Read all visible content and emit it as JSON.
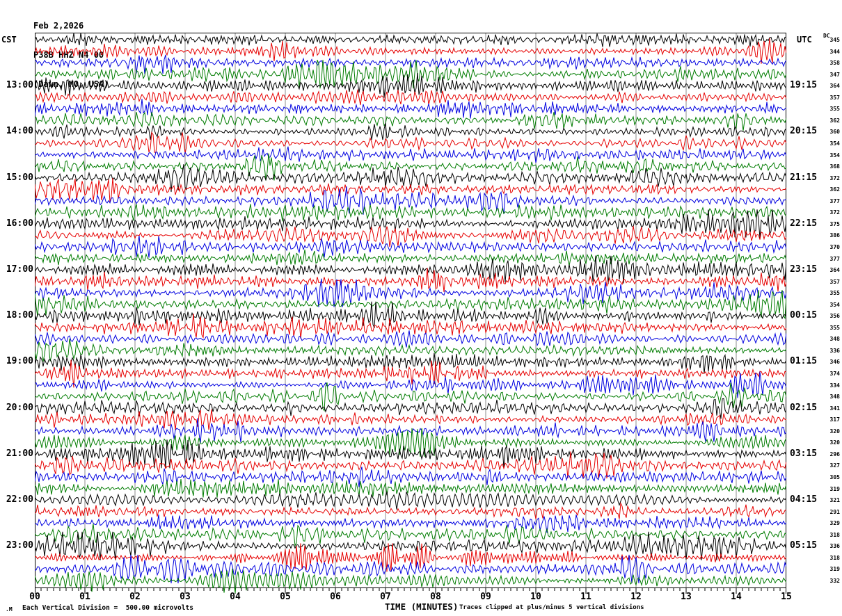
{
  "header": {
    "date": "Feb 2,2026",
    "station": "P38B HHZ N4 00",
    "location": "(Dawn, MO, USA)"
  },
  "axes": {
    "left_label": "CST",
    "right_label": "UTC",
    "dc_label": "DC",
    "x_title": "TIME (MINUTES)",
    "x_ticks": [
      "00",
      "01",
      "02",
      "03",
      "04",
      "05",
      "06",
      "07",
      "08",
      "09",
      "10",
      "11",
      "12",
      "13",
      "14",
      "15"
    ]
  },
  "footer": {
    "mark": ".M",
    "left": "Each Vertical Division =  500.00 microvolts",
    "right": "Traces clipped at plus/minus 5 vertical divisions"
  },
  "colors": {
    "trace_cycle": [
      "#000000",
      "#e60000",
      "#0000e0",
      "#007c00"
    ],
    "grid": "#8c8c8c",
    "border": "#000000"
  },
  "chart_data": {
    "type": "line",
    "subtype": "helicorder-seismogram",
    "title": "P38B HHZ N4 00 (Dawn, MO, USA) Feb 2,2026",
    "xlabel": "TIME (MINUTES)",
    "x_range_minutes": [
      0,
      15
    ],
    "minor_ticks_per_minute": 8,
    "rows": 48,
    "row_duration_minutes": 15,
    "trace_color_cycle": [
      "black",
      "red",
      "blue",
      "green"
    ],
    "vertical_division_microvolts": 500.0,
    "clip_divisions": 5,
    "dc_values": [
      345,
      344,
      358,
      347,
      364,
      357,
      355,
      362,
      360,
      354,
      354,
      368,
      372,
      362,
      377,
      372,
      375,
      386,
      370,
      377,
      364,
      357,
      355,
      354,
      356,
      355,
      348,
      336,
      346,
      374,
      334,
      348,
      341,
      317,
      320,
      320,
      296,
      327,
      305,
      319,
      321,
      291,
      329,
      318,
      336,
      318,
      319,
      332
    ],
    "relative_amplitudes": [
      0.95,
      0.85,
      0.9,
      1.05,
      1.15,
      1.0,
      0.95,
      1.05,
      0.8,
      0.85,
      0.9,
      1.0,
      1.15,
      0.95,
      1.05,
      1.05,
      1.1,
      1.05,
      0.95,
      1.0,
      1.1,
      1.05,
      0.95,
      1.05,
      1.15,
      1.1,
      0.95,
      0.9,
      1.05,
      0.95,
      0.9,
      1.0,
      1.15,
      0.9,
      0.9,
      1.05,
      1.2,
      1.15,
      1.05,
      1.1,
      1.15,
      0.95,
      0.9,
      1.05,
      1.2,
      1.15,
      1.2,
      1.25
    ],
    "cst_labels": [
      {
        "row": 5,
        "text": "13:00"
      },
      {
        "row": 9,
        "text": "14:00"
      },
      {
        "row": 13,
        "text": "15:00"
      },
      {
        "row": 17,
        "text": "16:00"
      },
      {
        "row": 21,
        "text": "17:00"
      },
      {
        "row": 25,
        "text": "18:00"
      },
      {
        "row": 29,
        "text": "19:00"
      },
      {
        "row": 33,
        "text": "20:00"
      },
      {
        "row": 37,
        "text": "21:00"
      },
      {
        "row": 41,
        "text": "22:00"
      },
      {
        "row": 45,
        "text": "23:00"
      }
    ],
    "utc_labels": [
      {
        "row": 5,
        "text": "19:15"
      },
      {
        "row": 9,
        "text": "20:15"
      },
      {
        "row": 13,
        "text": "21:15"
      },
      {
        "row": 17,
        "text": "22:15"
      },
      {
        "row": 21,
        "text": "23:15"
      },
      {
        "row": 25,
        "text": "00:15"
      },
      {
        "row": 29,
        "text": "01:15"
      },
      {
        "row": 33,
        "text": "02:15"
      },
      {
        "row": 37,
        "text": "03:15"
      },
      {
        "row": 41,
        "text": "04:15"
      },
      {
        "row": 45,
        "text": "05:15"
      }
    ]
  }
}
